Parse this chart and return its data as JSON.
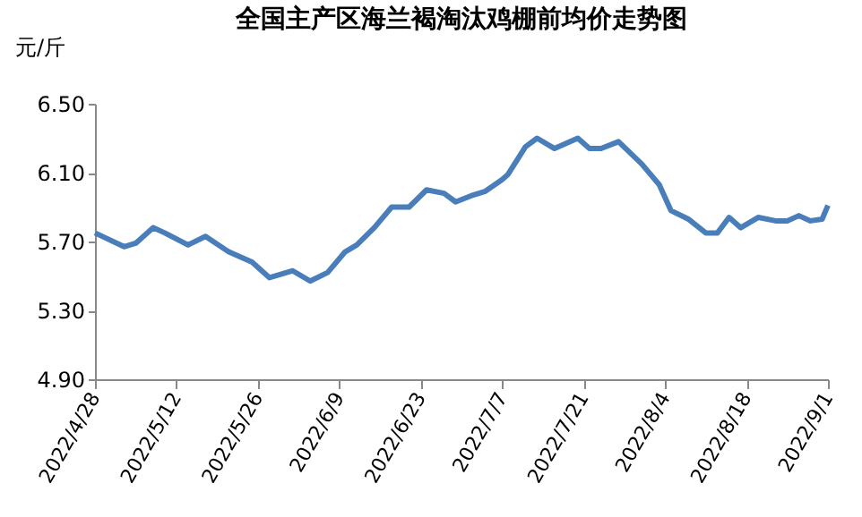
{
  "chart_data": {
    "type": "line",
    "title": "全国主产区海兰褐淘汰鸡棚前均价走势图",
    "ylabel": "元/斤",
    "x": [
      "2022-04-28",
      "2022-05-03",
      "2022-05-05",
      "2022-05-08",
      "2022-05-10",
      "2022-05-14",
      "2022-05-17",
      "2022-05-21",
      "2022-05-25",
      "2022-05-28",
      "2022-06-01",
      "2022-06-04",
      "2022-06-07",
      "2022-06-10",
      "2022-06-12",
      "2022-06-15",
      "2022-06-18",
      "2022-06-21",
      "2022-06-24",
      "2022-06-27",
      "2022-06-29",
      "2022-07-02",
      "2022-07-04",
      "2022-07-07",
      "2022-07-08",
      "2022-07-11",
      "2022-07-13",
      "2022-07-16",
      "2022-07-20",
      "2022-07-22",
      "2022-07-24",
      "2022-07-27",
      "2022-07-31",
      "2022-08-03",
      "2022-08-05",
      "2022-08-08",
      "2022-08-11",
      "2022-08-13",
      "2022-08-15",
      "2022-08-17",
      "2022-08-20",
      "2022-08-23",
      "2022-08-25",
      "2022-08-27",
      "2022-08-29",
      "2022-08-31",
      "2022-09-01"
    ],
    "series": [
      {
        "color": "#4a7ebb",
        "values": [
          5.75,
          5.67,
          5.69,
          5.78,
          5.75,
          5.68,
          5.73,
          5.64,
          5.58,
          5.49,
          5.53,
          5.47,
          5.52,
          5.64,
          5.68,
          5.78,
          5.9,
          5.9,
          6.0,
          5.98,
          5.93,
          5.97,
          5.99,
          6.06,
          6.09,
          6.25,
          6.3,
          6.24,
          6.3,
          6.24,
          6.24,
          6.28,
          6.15,
          6.03,
          5.88,
          5.83,
          5.75,
          5.75,
          5.84,
          5.78,
          5.84,
          5.82,
          5.82,
          5.85,
          5.82,
          5.83,
          5.91
        ]
      }
    ],
    "xlim": [
      "2022-04-28",
      "2022-09-01"
    ],
    "xticks": [
      {
        "value": "2022-04-28",
        "label": "2022/4/28"
      },
      {
        "value": "2022-05-12",
        "label": "2022/5/12"
      },
      {
        "value": "2022-05-26",
        "label": "2022/5/26"
      },
      {
        "value": "2022-06-09",
        "label": "2022/6/9"
      },
      {
        "value": "2022-06-23",
        "label": "2022/6/23"
      },
      {
        "value": "2022-07-07",
        "label": "2022/7/7"
      },
      {
        "value": "2022-07-21",
        "label": "2022/7/21"
      },
      {
        "value": "2022-08-04",
        "label": "2022/8/4"
      },
      {
        "value": "2022-08-18",
        "label": "2022/8/18"
      },
      {
        "value": "2022-09-01",
        "label": "2022/9/1"
      }
    ],
    "ylim": [
      4.9,
      6.5
    ],
    "yticks": [
      {
        "value": 4.9,
        "label": "4.90"
      },
      {
        "value": 5.3,
        "label": "5.30"
      },
      {
        "value": 5.7,
        "label": "5.70"
      },
      {
        "value": 6.1,
        "label": "6.10"
      },
      {
        "value": 6.5,
        "label": "6.50"
      }
    ],
    "grid": false,
    "legend": false,
    "marker": "none",
    "line_style": "solid"
  }
}
